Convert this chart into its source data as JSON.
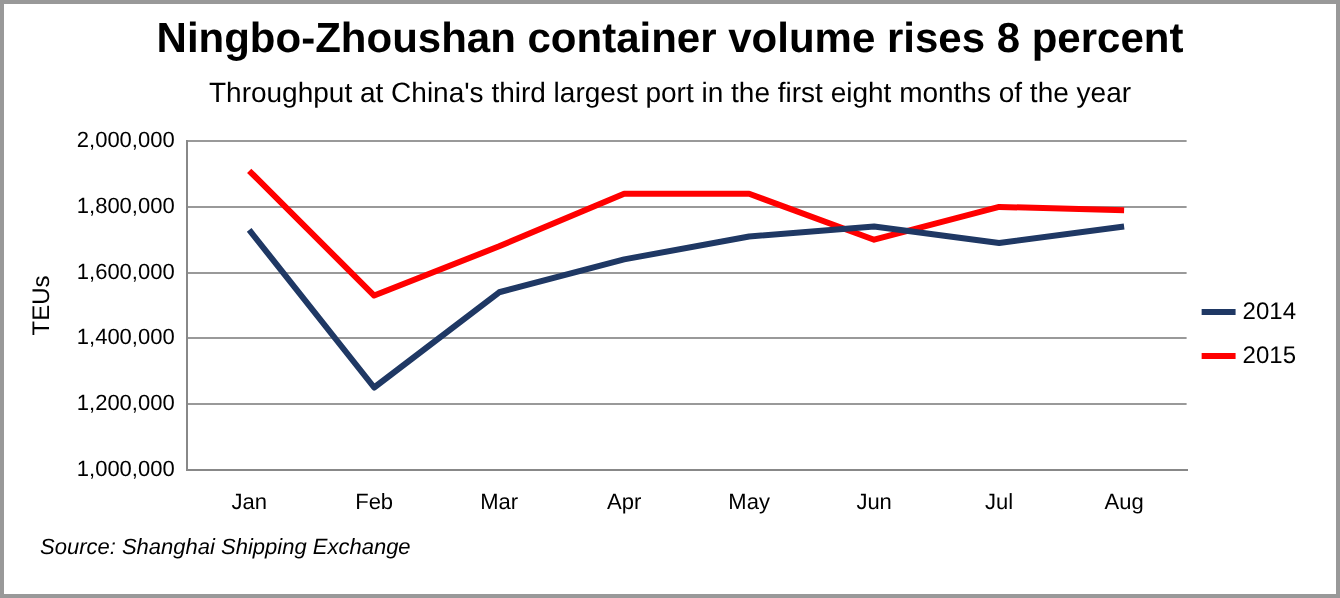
{
  "chart_data": {
    "type": "line",
    "title": "Ningbo-Zhoushan container volume rises 8 percent",
    "subtitle": "Throughput  at China's third largest port in the first eight months  of the  year",
    "ylabel": "TEUs",
    "categories": [
      "Jan",
      "Feb",
      "Mar",
      "Apr",
      "May",
      "Jun",
      "Jul",
      "Aug"
    ],
    "series": [
      {
        "name": "2014",
        "color": "#1f3864",
        "values": [
          1730000,
          1250000,
          1540000,
          1640000,
          1710000,
          1740000,
          1690000,
          1740000
        ]
      },
      {
        "name": "2015",
        "color": "#ff0000",
        "values": [
          1910000,
          1530000,
          1680000,
          1840000,
          1840000,
          1700000,
          1800000,
          1790000
        ]
      }
    ],
    "ylim": [
      1000000,
      2000000
    ],
    "yticks": [
      {
        "value": 1000000,
        "label": "1,000,000"
      },
      {
        "value": 1200000,
        "label": "1,200,000"
      },
      {
        "value": 1400000,
        "label": "1,400,000"
      },
      {
        "value": 1600000,
        "label": "1,600,000"
      },
      {
        "value": 1800000,
        "label": "1,800,000"
      },
      {
        "value": 2000000,
        "label": "2,000,000"
      }
    ],
    "grid": "y",
    "legend": "right",
    "marker": "none",
    "line_style": "solid",
    "annotations": [
      "Source:  Shanghai Shipping Exchange"
    ]
  }
}
